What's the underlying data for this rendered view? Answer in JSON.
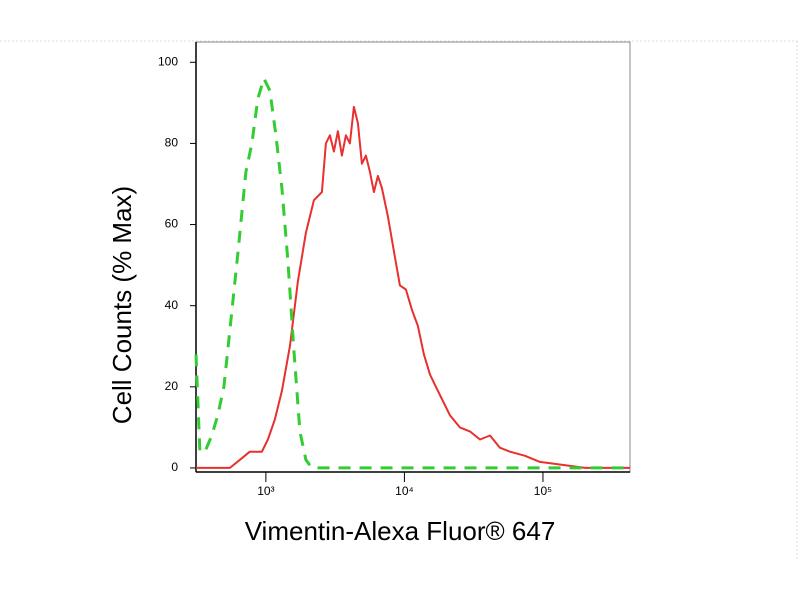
{
  "chart_data": {
    "type": "line",
    "x_label": "Vimentin-Alexa Fluor® 647",
    "y_label": "Cell Counts (% Max)",
    "xscale": "log",
    "xlim": [
      313,
      425000
    ],
    "ylim": [
      -1,
      105
    ],
    "xticks": [
      {
        "value": 1000,
        "label": "10³"
      },
      {
        "value": 10000,
        "label": "10⁴"
      },
      {
        "value": 100000,
        "label": "10⁵"
      }
    ],
    "yticks": [
      0,
      20,
      40,
      60,
      80,
      100
    ],
    "series": [
      {
        "color": "#e8302e",
        "dashed": false,
        "x": [
          313,
          394,
          550,
          649,
          766,
          936,
          1034,
          1161,
          1305,
          1490,
          1702,
          1945,
          2222,
          2375,
          2537,
          2712,
          2897,
          3097,
          3311,
          3539,
          3782,
          4043,
          4318,
          4614,
          4932,
          5272,
          5636,
          6024,
          6440,
          6880,
          7603,
          8536,
          9280,
          10250,
          11330,
          12520,
          13830,
          15290,
          16890,
          18660,
          21310,
          25160,
          29720,
          35100,
          41450,
          48930,
          57800,
          74200,
          95100,
          122100,
          156700,
          201000,
          258000,
          331000,
          425000
        ],
        "values": [
          0,
          0,
          0,
          2,
          4,
          4,
          7,
          12,
          19,
          30,
          46,
          58,
          66,
          67,
          68,
          80,
          82,
          78,
          83,
          77,
          82,
          80,
          89,
          85,
          75,
          77,
          73,
          68,
          72,
          69,
          62,
          52,
          45,
          44,
          39,
          35,
          28,
          23,
          20,
          17,
          13,
          10,
          9,
          7,
          8,
          5,
          4,
          3,
          1.5,
          1,
          0.5,
          0,
          0,
          0,
          0
        ]
      },
      {
        "color": "#33cc33",
        "dashed": true,
        "x": [
          313,
          334,
          363,
          407,
          450,
          498,
          550,
          628,
          717,
          792,
          875,
          967,
          1069,
          1181,
          1305,
          1442,
          1593,
          1760,
          1945,
          2148,
          2897,
          9280,
          48930,
          425000
        ],
        "values": [
          28,
          4,
          4,
          8,
          13,
          20,
          34,
          53,
          73,
          80,
          91,
          96,
          93,
          82,
          69,
          51,
          29,
          9,
          2,
          0,
          0,
          0,
          0,
          0
        ]
      }
    ]
  }
}
